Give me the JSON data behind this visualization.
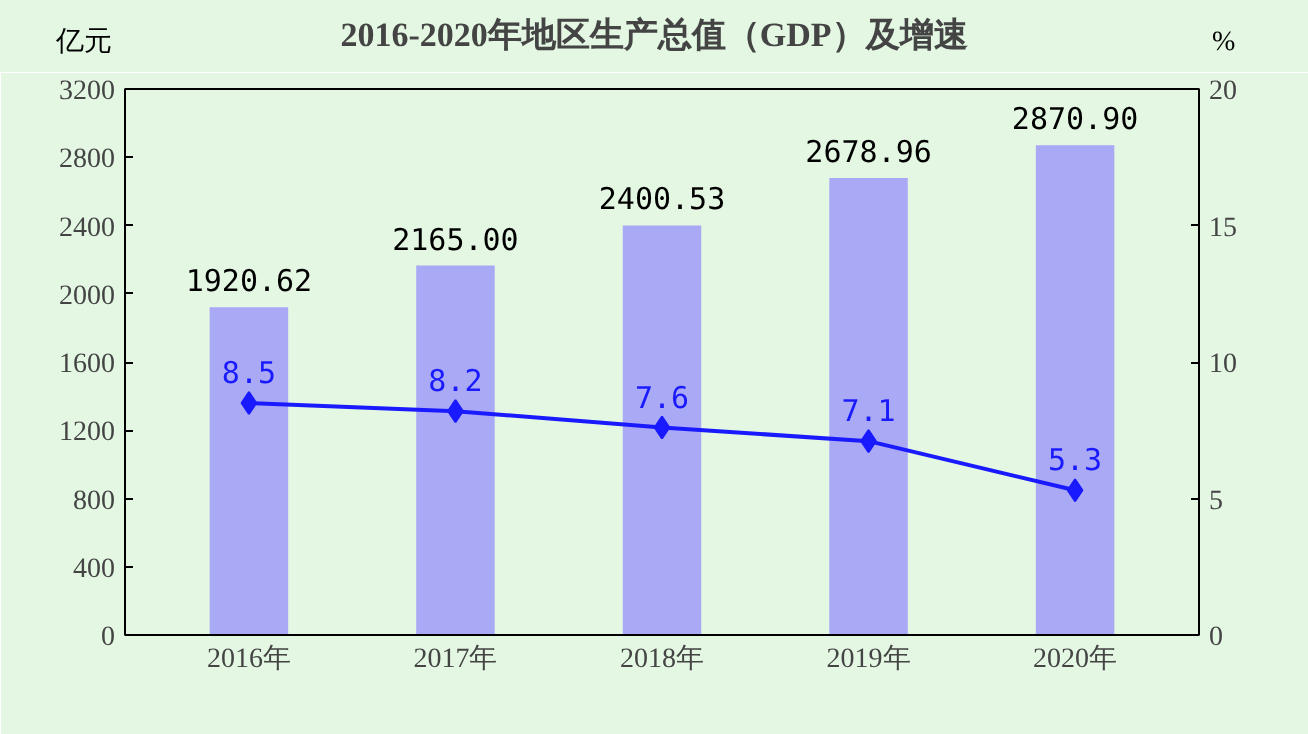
{
  "chart_data": {
    "type": "bar",
    "title": "2016-2020年地区生产总值（GDP）及增速",
    "ylabel": "亿元",
    "y2label": "%",
    "categories": [
      "2016年",
      "2017年",
      "2018年",
      "2019年",
      "2020年"
    ],
    "series": [
      {
        "color": "#a9a9f5",
        "values": [
          1920.62,
          2165.0,
          2400.53,
          2678.96,
          2870.9
        ],
        "value_labels": [
          "1920.62",
          "2165.00",
          "2400.53",
          "2678.96",
          "2870.90"
        ]
      },
      {
        "type": "line",
        "axis": "y2",
        "color": "#1a1aff",
        "marker": "diamond",
        "values": [
          8.5,
          8.2,
          7.6,
          7.1,
          5.3
        ],
        "value_labels": [
          "8.5",
          "8.2",
          "7.6",
          "7.1",
          "5.3"
        ]
      }
    ],
    "ylim": [
      0,
      3200
    ],
    "yticks": [
      0,
      400,
      800,
      1200,
      1600,
      2000,
      2400,
      2800,
      3200
    ],
    "y2lim": [
      0,
      20
    ],
    "y2ticks": [
      0,
      5,
      10,
      15,
      20
    ],
    "grid": false
  }
}
